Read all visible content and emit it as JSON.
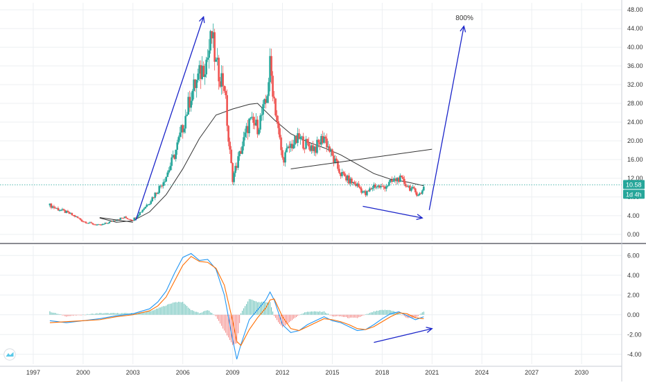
{
  "colors": {
    "up": "#26a69a",
    "down": "#ef5350",
    "ma": "#333333",
    "price_line": "#26a69a",
    "arrow": "#1a24c9",
    "macd": "#2196f3",
    "signal": "#ff6d00",
    "grid": "#eceff2",
    "logo": "#5ac8e8"
  },
  "chart_data": [
    {
      "type": "candlestick",
      "x_axis": {
        "type": "date",
        "range": [
          "1995-01",
          "2032-06"
        ],
        "tick_labels": [
          "1997",
          "2000",
          "2003",
          "2006",
          "2009",
          "2012",
          "2015",
          "2018",
          "2021",
          "2024",
          "2027",
          "2030"
        ]
      },
      "y_axis": {
        "range": [
          -1.5,
          49.5
        ],
        "side": "right",
        "tick_labels": [
          "0.00",
          "4.00",
          "8.00",
          "12.00",
          "16.00",
          "20.00",
          "24.00",
          "28.00",
          "32.00",
          "36.00",
          "40.00",
          "44.00",
          "48.00"
        ]
      },
      "grid": true,
      "price_series": [
        [
          "1998-01",
          6.2
        ],
        [
          "1998-07",
          5.4
        ],
        [
          "1999-01",
          4.7
        ],
        [
          "1999-07",
          3.9
        ],
        [
          "2000-01",
          2.8
        ],
        [
          "2000-07",
          2.3
        ],
        [
          "2001-01",
          1.9
        ],
        [
          "2001-07",
          2.5
        ],
        [
          "2002-01",
          3.2
        ],
        [
          "2002-07",
          3.6
        ],
        [
          "2003-01",
          3.1
        ],
        [
          "2003-07",
          5.0
        ],
        [
          "2004-01",
          7.0
        ],
        [
          "2004-07",
          9.5
        ],
        [
          "2005-01",
          12.5
        ],
        [
          "2005-07",
          17.0
        ],
        [
          "2006-01",
          23.0
        ],
        [
          "2006-07",
          30.0
        ],
        [
          "2007-01",
          34.0
        ],
        [
          "2007-07",
          38.0
        ],
        [
          "2007-10",
          42.5
        ],
        [
          "2008-01",
          36.0
        ],
        [
          "2008-07",
          32.0
        ],
        [
          "2008-10",
          20.0
        ],
        [
          "2009-01",
          12.0
        ],
        [
          "2009-07",
          18.0
        ],
        [
          "2010-01",
          24.0
        ],
        [
          "2010-07",
          23.0
        ],
        [
          "2011-01",
          28.0
        ],
        [
          "2011-04",
          36.0
        ],
        [
          "2011-10",
          22.0
        ],
        [
          "2012-01",
          16.0
        ],
        [
          "2012-07",
          19.0
        ],
        [
          "2013-01",
          20.5
        ],
        [
          "2013-07",
          19.0
        ],
        [
          "2014-01",
          18.5
        ],
        [
          "2014-07",
          21.0
        ],
        [
          "2015-01",
          16.5
        ],
        [
          "2015-07",
          13.0
        ],
        [
          "2016-01",
          11.5
        ],
        [
          "2016-07",
          10.5
        ],
        [
          "2017-01",
          8.5
        ],
        [
          "2017-07",
          10.5
        ],
        [
          "2018-01",
          10.0
        ],
        [
          "2018-07",
          11.0
        ],
        [
          "2019-01",
          12.0
        ],
        [
          "2019-07",
          10.5
        ],
        [
          "2020-01",
          9.0
        ],
        [
          "2020-05",
          8.5
        ],
        [
          "2020-07",
          10.58
        ]
      ],
      "moving_average": [
        [
          "2001-01",
          3.5
        ],
        [
          "2002-01",
          2.6
        ],
        [
          "2003-01",
          2.9
        ],
        [
          "2004-01",
          4.8
        ],
        [
          "2005-01",
          8.5
        ],
        [
          "2006-01",
          14.0
        ],
        [
          "2007-01",
          20.5
        ],
        [
          "2008-01",
          25.5
        ],
        [
          "2009-01",
          26.8
        ],
        [
          "2010-01",
          27.8
        ],
        [
          "2010-07",
          28.0
        ],
        [
          "2011-07",
          24.5
        ],
        [
          "2012-07",
          21.5
        ],
        [
          "2013-07",
          19.8
        ],
        [
          "2014-07",
          18.5
        ],
        [
          "2015-07",
          17.0
        ],
        [
          "2016-07",
          15.0
        ],
        [
          "2017-07",
          13.0
        ],
        [
          "2018-07",
          11.8
        ],
        [
          "2019-07",
          11.2
        ],
        [
          "2020-07",
          10.4
        ]
      ],
      "current_price": 10.58,
      "current_price_label": "10.58",
      "countdown_label": "1d 4h",
      "trendlines": [
        {
          "name": "early-flat-line",
          "points": [
            [
              "2001-01",
              3.6
            ],
            [
              "2003-01",
              2.6
            ]
          ]
        },
        {
          "name": "rising-channel-line",
          "points": [
            [
              "2012-07",
              14.0
            ],
            [
              "2021-01",
              18.2
            ]
          ]
        }
      ],
      "arrows": [
        {
          "name": "rally-arrow",
          "from": [
            "2003-03",
            3.0
          ],
          "to": [
            "2007-04",
            46.5
          ]
        },
        {
          "name": "divergence-arrow",
          "from": [
            "2016-11",
            6.0
          ],
          "to": [
            "2020-06",
            3.5
          ]
        },
        {
          "name": "projection-arrow",
          "from": [
            "2020-11",
            5.2
          ],
          "to": [
            "2022-12",
            44.5
          ]
        }
      ],
      "annotations": [
        {
          "text": "800%",
          "x": "2022-06",
          "y": 45.8
        }
      ]
    },
    {
      "type": "macd",
      "x_axis": {
        "type": "date",
        "range": [
          "1995-01",
          "2032-06"
        ]
      },
      "y_axis": {
        "range": [
          -5.0,
          7.0
        ],
        "side": "right",
        "tick_labels": [
          "6.00",
          "4.00",
          "2.00",
          "0.00",
          "-2.00",
          "-4.00"
        ]
      },
      "grid": true,
      "macd_line": [
        [
          "1998-01",
          -0.6
        ],
        [
          "1999-01",
          -0.8
        ],
        [
          "2000-01",
          -0.6
        ],
        [
          "2001-01",
          -0.4
        ],
        [
          "2002-01",
          -0.1
        ],
        [
          "2003-01",
          0.1
        ],
        [
          "2004-01",
          0.6
        ],
        [
          "2004-07",
          1.3
        ],
        [
          "2005-01",
          2.4
        ],
        [
          "2005-07",
          4.2
        ],
        [
          "2006-01",
          5.8
        ],
        [
          "2006-07",
          6.2
        ],
        [
          "2007-01",
          5.5
        ],
        [
          "2007-07",
          5.6
        ],
        [
          "2008-01",
          4.6
        ],
        [
          "2008-07",
          2.0
        ],
        [
          "2009-01",
          -2.5
        ],
        [
          "2009-04",
          -4.5
        ],
        [
          "2009-07",
          -3.0
        ],
        [
          "2010-01",
          -0.5
        ],
        [
          "2010-07",
          0.5
        ],
        [
          "2011-01",
          1.5
        ],
        [
          "2011-04",
          2.3
        ],
        [
          "2011-07",
          1.5
        ],
        [
          "2012-01",
          -1.0
        ],
        [
          "2012-07",
          -1.8
        ],
        [
          "2013-01",
          -1.6
        ],
        [
          "2013-07",
          -1.0
        ],
        [
          "2014-01",
          -0.6
        ],
        [
          "2014-07",
          -0.2
        ],
        [
          "2015-01",
          -0.6
        ],
        [
          "2015-07",
          -0.8
        ],
        [
          "2016-01",
          -1.2
        ],
        [
          "2016-07",
          -1.6
        ],
        [
          "2017-01",
          -1.5
        ],
        [
          "2017-07",
          -1.0
        ],
        [
          "2018-01",
          -0.4
        ],
        [
          "2018-07",
          0.1
        ],
        [
          "2019-01",
          0.3
        ],
        [
          "2019-07",
          -0.1
        ],
        [
          "2020-01",
          -0.5
        ],
        [
          "2020-07",
          -0.2
        ]
      ],
      "signal_line": [
        [
          "1998-01",
          -0.8
        ],
        [
          "1999-01",
          -0.7
        ],
        [
          "2000-01",
          -0.6
        ],
        [
          "2001-01",
          -0.5
        ],
        [
          "2002-01",
          -0.2
        ],
        [
          "2003-01",
          0.0
        ],
        [
          "2004-01",
          0.4
        ],
        [
          "2004-07",
          0.9
        ],
        [
          "2005-01",
          1.8
        ],
        [
          "2005-07",
          3.4
        ],
        [
          "2006-01",
          5.0
        ],
        [
          "2006-07",
          5.9
        ],
        [
          "2007-01",
          5.4
        ],
        [
          "2007-07",
          5.3
        ],
        [
          "2008-01",
          4.7
        ],
        [
          "2008-07",
          3.0
        ],
        [
          "2009-01",
          -0.6
        ],
        [
          "2009-04",
          -2.7
        ],
        [
          "2009-07",
          -3.1
        ],
        [
          "2010-01",
          -1.5
        ],
        [
          "2010-07",
          -0.3
        ],
        [
          "2011-01",
          0.7
        ],
        [
          "2011-04",
          1.5
        ],
        [
          "2011-07",
          1.6
        ],
        [
          "2012-01",
          -0.2
        ],
        [
          "2012-07",
          -1.4
        ],
        [
          "2013-01",
          -1.6
        ],
        [
          "2013-07",
          -1.2
        ],
        [
          "2014-01",
          -0.8
        ],
        [
          "2014-07",
          -0.4
        ],
        [
          "2015-01",
          -0.5
        ],
        [
          "2015-07",
          -0.7
        ],
        [
          "2016-01",
          -1.0
        ],
        [
          "2016-07",
          -1.4
        ],
        [
          "2017-01",
          -1.5
        ],
        [
          "2017-07",
          -1.2
        ],
        [
          "2018-01",
          -0.7
        ],
        [
          "2018-07",
          -0.2
        ],
        [
          "2019-01",
          0.2
        ],
        [
          "2019-07",
          0.1
        ],
        [
          "2020-01",
          -0.3
        ],
        [
          "2020-07",
          -0.4
        ]
      ],
      "arrows": [
        {
          "name": "macd-divergence-arrow",
          "from": [
            "2017-07",
            -2.8
          ],
          "to": [
            "2021-01",
            -1.4
          ]
        }
      ]
    }
  ]
}
